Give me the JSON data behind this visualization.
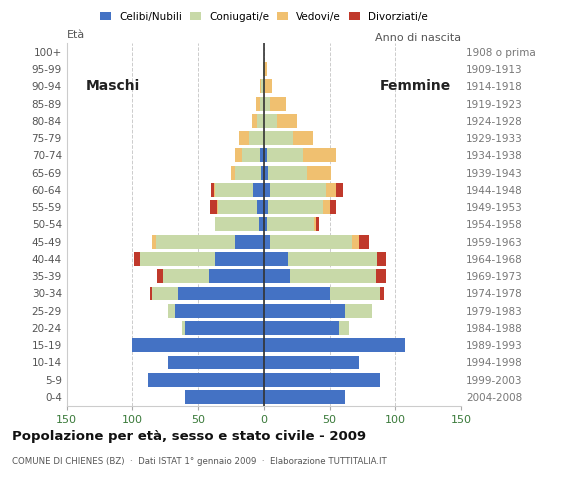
{
  "age_groups": [
    "0-4",
    "5-9",
    "10-14",
    "15-19",
    "20-24",
    "25-29",
    "30-34",
    "35-39",
    "40-44",
    "45-49",
    "50-54",
    "55-59",
    "60-64",
    "65-69",
    "70-74",
    "75-79",
    "80-84",
    "85-89",
    "90-94",
    "95-99",
    "100+"
  ],
  "birth_years": [
    "2004-2008",
    "1999-2003",
    "1994-1998",
    "1989-1993",
    "1984-1988",
    "1979-1983",
    "1974-1978",
    "1969-1973",
    "1964-1968",
    "1959-1963",
    "1954-1958",
    "1949-1953",
    "1944-1948",
    "1939-1943",
    "1934-1938",
    "1929-1933",
    "1924-1928",
    "1919-1923",
    "1914-1918",
    "1909-1913",
    "1908 o prima"
  ],
  "males": {
    "celibi": [
      60,
      88,
      73,
      100,
      60,
      68,
      65,
      42,
      37,
      22,
      4,
      5,
      8,
      2,
      3,
      0,
      0,
      0,
      0,
      0,
      0
    ],
    "coniugati": [
      0,
      0,
      0,
      0,
      2,
      5,
      20,
      35,
      57,
      60,
      33,
      30,
      29,
      20,
      14,
      11,
      5,
      3,
      2,
      1,
      0
    ],
    "vedovi": [
      0,
      0,
      0,
      0,
      0,
      0,
      0,
      0,
      0,
      3,
      0,
      1,
      1,
      3,
      5,
      8,
      4,
      3,
      1,
      0,
      0
    ],
    "divorziati": [
      0,
      0,
      0,
      0,
      0,
      0,
      2,
      4,
      5,
      0,
      0,
      5,
      2,
      0,
      0,
      0,
      0,
      0,
      0,
      0,
      0
    ]
  },
  "females": {
    "nubili": [
      62,
      88,
      72,
      107,
      57,
      62,
      50,
      20,
      18,
      5,
      2,
      3,
      5,
      3,
      2,
      0,
      0,
      0,
      0,
      0,
      0
    ],
    "coniugate": [
      0,
      0,
      0,
      0,
      8,
      20,
      38,
      65,
      68,
      62,
      36,
      42,
      42,
      30,
      28,
      22,
      10,
      5,
      1,
      0,
      0
    ],
    "vedove": [
      0,
      0,
      0,
      0,
      0,
      0,
      0,
      0,
      0,
      5,
      2,
      5,
      8,
      18,
      25,
      15,
      15,
      12,
      5,
      2,
      0
    ],
    "divorziate": [
      0,
      0,
      0,
      0,
      0,
      0,
      3,
      8,
      7,
      8,
      2,
      5,
      5,
      0,
      0,
      0,
      0,
      0,
      0,
      0,
      0
    ]
  },
  "colors": {
    "celibi": "#4472c4",
    "coniugati": "#c8d9a8",
    "vedovi": "#f0c070",
    "divorziati": "#c0392b"
  },
  "xlim": 150,
  "title": "Popolazione per età, sesso e stato civile - 2009",
  "subtitle": "COMUNE DI CHIENES (BZ)  ·  Dati ISTAT 1° gennaio 2009  ·  Elaborazione TUTTITALIA.IT",
  "ylabel_left": "Età",
  "ylabel_right": "Anno di nascita",
  "legend_labels": [
    "Celibi/Nubili",
    "Coniugati/e",
    "Vedovi/e",
    "Divorziati/e"
  ],
  "background_color": "#ffffff",
  "bar_height": 0.8
}
